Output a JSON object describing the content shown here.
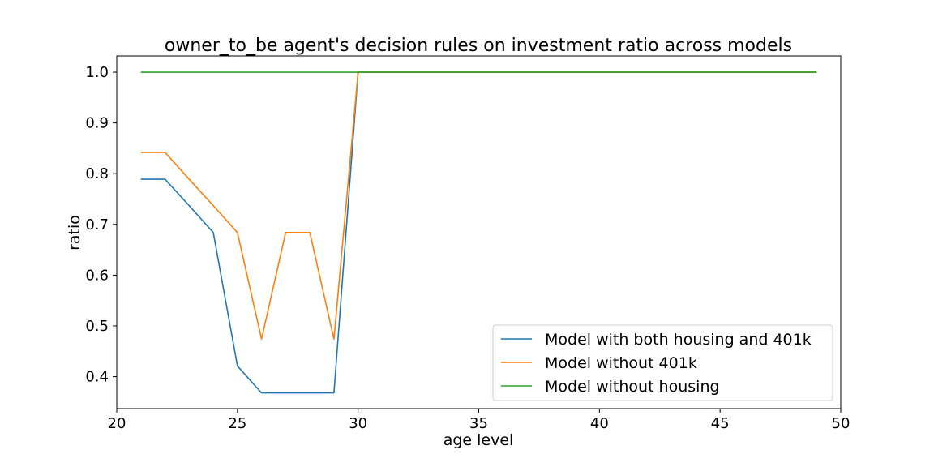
{
  "chart_data": {
    "type": "line",
    "title": "owner_to_be agent's decision rules on investment ratio across models",
    "xlabel": "age level",
    "ylabel": "ratio",
    "xlim": [
      20,
      50
    ],
    "ylim": [
      0.337,
      1.032
    ],
    "xticks": [
      20,
      25,
      30,
      35,
      40,
      45,
      50
    ],
    "yticks": [
      0.4,
      0.5,
      0.6,
      0.7,
      0.8,
      0.9,
      1.0
    ],
    "grid": false,
    "legend_position": "lower-right",
    "x": [
      21,
      22,
      23,
      24,
      25,
      26,
      27,
      28,
      29,
      30,
      31,
      32,
      33,
      34,
      35,
      36,
      37,
      38,
      39,
      40,
      41,
      42,
      43,
      44,
      45,
      46,
      47,
      48,
      49
    ],
    "series": [
      {
        "name": "Model with both housing and 401k",
        "color": "#1f77b4",
        "values": [
          0.789,
          0.789,
          0.737,
          0.684,
          0.421,
          0.368,
          0.368,
          0.368,
          0.368,
          1.0,
          1.0,
          1.0,
          1.0,
          1.0,
          1.0,
          1.0,
          1.0,
          1.0,
          1.0,
          1.0,
          1.0,
          1.0,
          1.0,
          1.0,
          1.0,
          1.0,
          1.0,
          1.0,
          1.0
        ]
      },
      {
        "name": "Model without 401k",
        "color": "#ff7f0e",
        "values": [
          0.842,
          0.842,
          0.789,
          0.737,
          0.684,
          0.474,
          0.684,
          0.684,
          0.474,
          1.0,
          1.0,
          1.0,
          1.0,
          1.0,
          1.0,
          1.0,
          1.0,
          1.0,
          1.0,
          1.0,
          1.0,
          1.0,
          1.0,
          1.0,
          1.0,
          1.0,
          1.0,
          1.0,
          1.0
        ]
      },
      {
        "name": "Model without housing",
        "color": "#2ca02c",
        "values": [
          1.0,
          1.0,
          1.0,
          1.0,
          1.0,
          1.0,
          1.0,
          1.0,
          1.0,
          1.0,
          1.0,
          1.0,
          1.0,
          1.0,
          1.0,
          1.0,
          1.0,
          1.0,
          1.0,
          1.0,
          1.0,
          1.0,
          1.0,
          1.0,
          1.0,
          1.0,
          1.0,
          1.0,
          1.0
        ]
      }
    ]
  }
}
